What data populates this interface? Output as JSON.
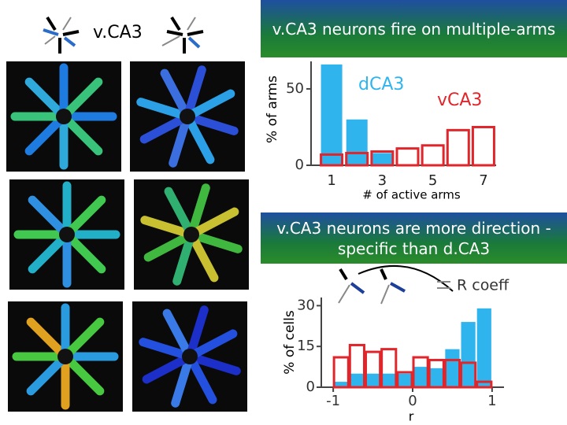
{
  "slide_label": "v.CA3",
  "chart_data": [
    {
      "type": "bar",
      "title": "v.CA3 neurons fire on multiple-arms",
      "ylabel": "% of arms",
      "xlabel": "# of active arms",
      "categories": [
        "1",
        null,
        "3",
        null,
        "5",
        null,
        "7"
      ],
      "series": [
        {
          "name": "dCA3",
          "color": "#2fb4ee",
          "values": [
            66,
            30,
            8,
            0,
            0,
            0,
            0
          ]
        },
        {
          "name": "vCA3",
          "color": "#e0252b",
          "values": [
            7,
            8,
            9,
            11,
            13,
            23,
            25
          ]
        }
      ],
      "ylim": [
        0,
        68
      ],
      "yticks": [
        0,
        50
      ]
    },
    {
      "type": "histogram",
      "title": "v.CA3 neurons are more direction -specific than d.CA3",
      "ylabel": "% of cells",
      "xlabel": "r",
      "annotation": "R coeff",
      "bins": [
        -1,
        -0.8,
        -0.6,
        -0.4,
        -0.2,
        0,
        0.2,
        0.4,
        0.6,
        0.8,
        1
      ],
      "series": [
        {
          "color": "#2fb4ee",
          "values": [
            2,
            5,
            5,
            5,
            5,
            7.5,
            7,
            14,
            24,
            29
          ]
        },
        {
          "color": "#e0252b",
          "values": [
            11,
            15.5,
            13,
            14,
            5.5,
            11,
            10,
            10,
            9,
            2
          ]
        }
      ],
      "xlim": [
        -1.15,
        1.15
      ],
      "xticks": [
        -1,
        0,
        1
      ],
      "ylim": [
        0,
        33
      ],
      "yticks": [
        0,
        15,
        30
      ]
    }
  ]
}
